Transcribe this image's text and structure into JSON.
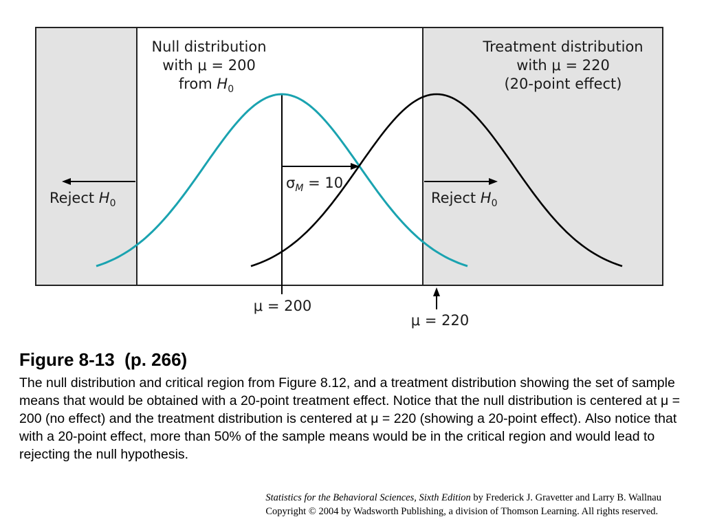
{
  "diagram": {
    "null_label": {
      "line1": "Null distribution",
      "line2": "with μ = 200",
      "line3_prefix": "from ",
      "line3_symbol": "H",
      "line3_sub": "0"
    },
    "treatment_label": {
      "line1": "Treatment distribution",
      "line2": "with μ = 220",
      "line3": "(20-point effect)"
    },
    "sigma_label": {
      "symbol": "σ",
      "sub": "M",
      "value": " = 10"
    },
    "reject_left": {
      "prefix": "Reject ",
      "symbol": "H",
      "sub": "0"
    },
    "reject_right": {
      "prefix": "Reject ",
      "symbol": "H",
      "sub": "0"
    },
    "mu_null": "μ = 200",
    "mu_treatment": "μ = 220",
    "colors": {
      "null_curve": "#1aa3b0",
      "treatment_curve": "#000000",
      "critical_region": "#e3e3e3"
    },
    "distributions": [
      {
        "mean": 200,
        "sd": 10
      },
      {
        "mean": 220,
        "sd": 10
      }
    ]
  },
  "caption": {
    "title": "Figure 8-13  (p. 266)",
    "body": "The null distribution and critical region from Figure 8.12, and a treatment distribution showing the set of sample means that would be obtained with a 20-point treatment effect. Notice that the null distribution is centered at μ = 200 (no effect) and the treatment distribution is centered at μ = 220 (showing a 20-point effect). Also notice that with a 20-point effect, more than 50% of the sample means would be in the critical region and would lead to rejecting the null hypothesis."
  },
  "credit": {
    "book": "Statistics for the Behavioral Sciences, Sixth Edition",
    "authors": " by Frederick J. Gravetter and Larry B. Wallnau",
    "copyright": "Copyright © 2004 by Wadsworth Publishing, a division of Thomson Learning.  All rights reserved."
  }
}
